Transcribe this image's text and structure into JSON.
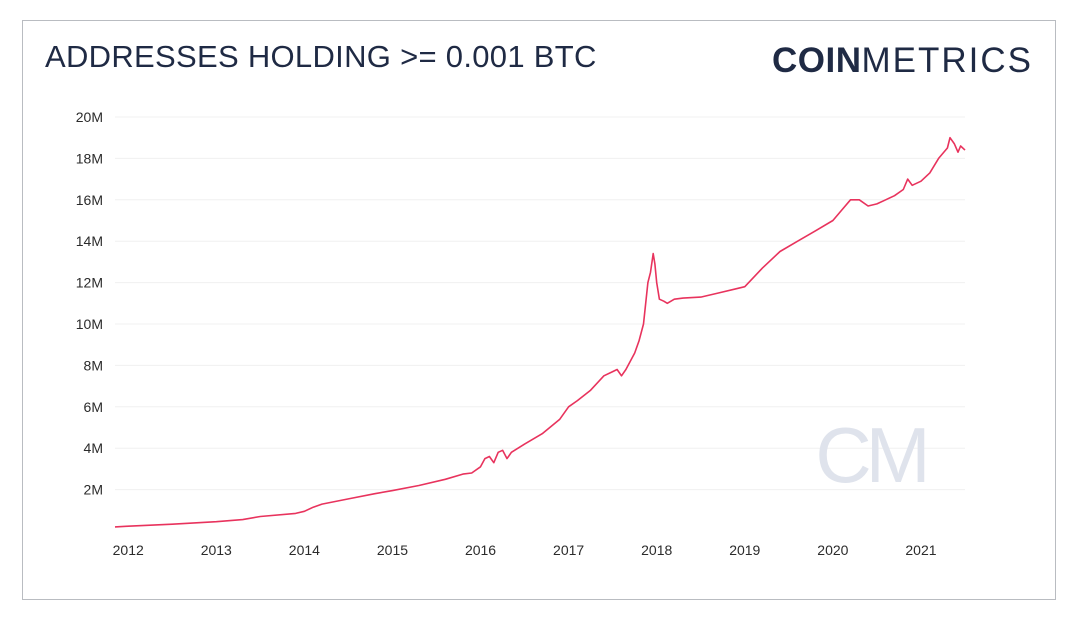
{
  "title": "ADDRESSES HOLDING >= 0.001 BTC",
  "logo": {
    "bold": "COIN",
    "light": "METRICS",
    "watermark": "CM"
  },
  "colors": {
    "line": "#e8335d",
    "text": "#1f2a44",
    "grid": "#f0f0f0",
    "watermark": "#dfe3ec"
  },
  "chart_data": {
    "type": "line",
    "title": "ADDRESSES HOLDING >= 0.001 BTC",
    "xlabel": "",
    "ylabel": "",
    "xlim": [
      2011.85,
      2021.5
    ],
    "ylim": [
      0,
      20000000
    ],
    "x_ticks": [
      2012,
      2013,
      2014,
      2015,
      2016,
      2017,
      2018,
      2019,
      2020,
      2021
    ],
    "x_tick_labels": [
      "2012",
      "2013",
      "2014",
      "2015",
      "2016",
      "2017",
      "2018",
      "2019",
      "2020",
      "2021"
    ],
    "y_ticks": [
      2000000,
      4000000,
      6000000,
      8000000,
      10000000,
      12000000,
      14000000,
      16000000,
      18000000,
      20000000
    ],
    "y_tick_labels": [
      "2M",
      "4M",
      "6M",
      "8M",
      "10M",
      "12M",
      "14M",
      "16M",
      "18M",
      "20M"
    ],
    "grid": true,
    "series": [
      {
        "name": "Addresses holding >= 0.001 BTC",
        "x": [
          2011.85,
          2012.0,
          2012.5,
          2013.0,
          2013.3,
          2013.5,
          2013.9,
          2014.0,
          2014.1,
          2014.2,
          2014.5,
          2014.8,
          2015.0,
          2015.3,
          2015.6,
          2015.8,
          2015.9,
          2016.0,
          2016.05,
          2016.1,
          2016.15,
          2016.2,
          2016.25,
          2016.3,
          2016.35,
          2016.5,
          2016.7,
          2016.9,
          2017.0,
          2017.1,
          2017.25,
          2017.4,
          2017.5,
          2017.55,
          2017.6,
          2017.65,
          2017.7,
          2017.75,
          2017.8,
          2017.85,
          2017.9,
          2017.93,
          2017.96,
          2017.98,
          2018.0,
          2018.03,
          2018.08,
          2018.12,
          2018.2,
          2018.3,
          2018.5,
          2018.7,
          2018.9,
          2019.0,
          2019.2,
          2019.4,
          2019.6,
          2019.8,
          2020.0,
          2020.1,
          2020.2,
          2020.3,
          2020.4,
          2020.5,
          2020.6,
          2020.7,
          2020.8,
          2020.85,
          2020.9,
          2021.0,
          2021.1,
          2021.2,
          2021.3,
          2021.33,
          2021.38,
          2021.42,
          2021.45,
          2021.5
        ],
        "values": [
          200000,
          230000,
          330000,
          450000,
          550000,
          700000,
          850000,
          950000,
          1150000,
          1300000,
          1550000,
          1800000,
          1950000,
          2200000,
          2500000,
          2750000,
          2800000,
          3100000,
          3500000,
          3600000,
          3300000,
          3800000,
          3900000,
          3500000,
          3800000,
          4200000,
          4700000,
          5400000,
          6000000,
          6300000,
          6800000,
          7500000,
          7700000,
          7800000,
          7500000,
          7800000,
          8200000,
          8600000,
          9200000,
          10000000,
          12000000,
          12500000,
          13400000,
          12900000,
          12000000,
          11200000,
          11100000,
          11000000,
          11200000,
          11250000,
          11300000,
          11500000,
          11700000,
          11800000,
          12700000,
          13500000,
          14000000,
          14500000,
          15000000,
          15500000,
          16000000,
          16000000,
          15700000,
          15800000,
          16000000,
          16200000,
          16500000,
          17000000,
          16700000,
          16900000,
          17300000,
          18000000,
          18500000,
          19000000,
          18700000,
          18300000,
          18600000,
          18400000
        ]
      }
    ]
  }
}
